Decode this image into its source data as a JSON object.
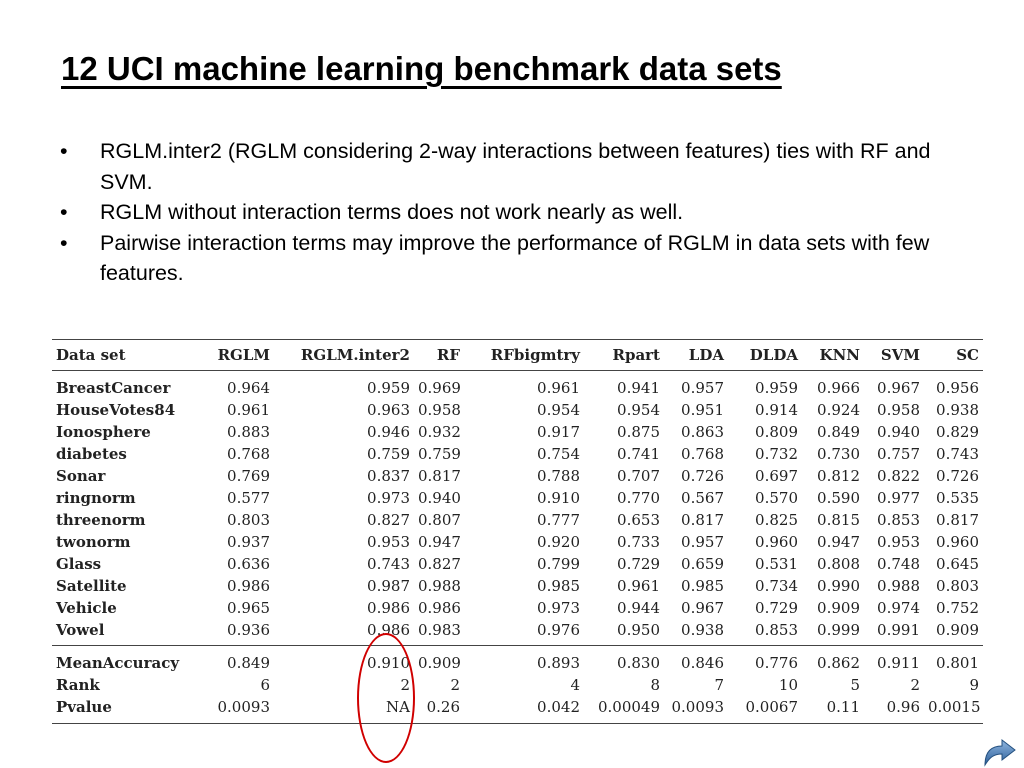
{
  "title": "12 UCI machine learning benchmark data sets",
  "bullets": [
    "RGLM.inter2 (RGLM considering 2-way interactions between features) ties with RF and SVM.",
    "RGLM without interaction terms does not work nearly as well.",
    "Pairwise interaction terms may improve the performance of RGLM in data sets with few features."
  ],
  "bullet_symbol": "•",
  "table": {
    "headers": [
      "Data set",
      "RGLM",
      "RGLM.inter2",
      "RF",
      "RFbigmtry",
      "Rpart",
      "LDA",
      "DLDA",
      "KNN",
      "SVM",
      "SC"
    ],
    "rows": [
      [
        "BreastCancer",
        "0.964",
        "0.959",
        "0.969",
        "0.961",
        "0.941",
        "0.957",
        "0.959",
        "0.966",
        "0.967",
        "0.956"
      ],
      [
        "HouseVotes84",
        "0.961",
        "0.963",
        "0.958",
        "0.954",
        "0.954",
        "0.951",
        "0.914",
        "0.924",
        "0.958",
        "0.938"
      ],
      [
        "Ionosphere",
        "0.883",
        "0.946",
        "0.932",
        "0.917",
        "0.875",
        "0.863",
        "0.809",
        "0.849",
        "0.940",
        "0.829"
      ],
      [
        "diabetes",
        "0.768",
        "0.759",
        "0.759",
        "0.754",
        "0.741",
        "0.768",
        "0.732",
        "0.730",
        "0.757",
        "0.743"
      ],
      [
        "Sonar",
        "0.769",
        "0.837",
        "0.817",
        "0.788",
        "0.707",
        "0.726",
        "0.697",
        "0.812",
        "0.822",
        "0.726"
      ],
      [
        "ringnorm",
        "0.577",
        "0.973",
        "0.940",
        "0.910",
        "0.770",
        "0.567",
        "0.570",
        "0.590",
        "0.977",
        "0.535"
      ],
      [
        "threenorm",
        "0.803",
        "0.827",
        "0.807",
        "0.777",
        "0.653",
        "0.817",
        "0.825",
        "0.815",
        "0.853",
        "0.817"
      ],
      [
        "twonorm",
        "0.937",
        "0.953",
        "0.947",
        "0.920",
        "0.733",
        "0.957",
        "0.960",
        "0.947",
        "0.953",
        "0.960"
      ],
      [
        "Glass",
        "0.636",
        "0.743",
        "0.827",
        "0.799",
        "0.729",
        "0.659",
        "0.531",
        "0.808",
        "0.748",
        "0.645"
      ],
      [
        "Satellite",
        "0.986",
        "0.987",
        "0.988",
        "0.985",
        "0.961",
        "0.985",
        "0.734",
        "0.990",
        "0.988",
        "0.803"
      ],
      [
        "Vehicle",
        "0.965",
        "0.986",
        "0.986",
        "0.973",
        "0.944",
        "0.967",
        "0.729",
        "0.909",
        "0.974",
        "0.752"
      ],
      [
        "Vowel",
        "0.936",
        "0.986",
        "0.983",
        "0.976",
        "0.950",
        "0.938",
        "0.853",
        "0.999",
        "0.991",
        "0.909"
      ]
    ],
    "summary_rows": [
      [
        "MeanAccuracy",
        "0.849",
        "0.910",
        "0.909",
        "0.893",
        "0.830",
        "0.846",
        "0.776",
        "0.862",
        "0.911",
        "0.801"
      ],
      [
        "Rank",
        "6",
        "2",
        "2",
        "4",
        "8",
        "7",
        "10",
        "5",
        "2",
        "9"
      ],
      [
        "Pvalue",
        "0.0093",
        "NA",
        "0.26",
        "0.042",
        "0.00049",
        "0.0093",
        "0.0067",
        "0.11",
        "0.96",
        "0.0015"
      ]
    ]
  },
  "highlight_color": "#d00000",
  "nav_icon": "next-arrow-icon"
}
